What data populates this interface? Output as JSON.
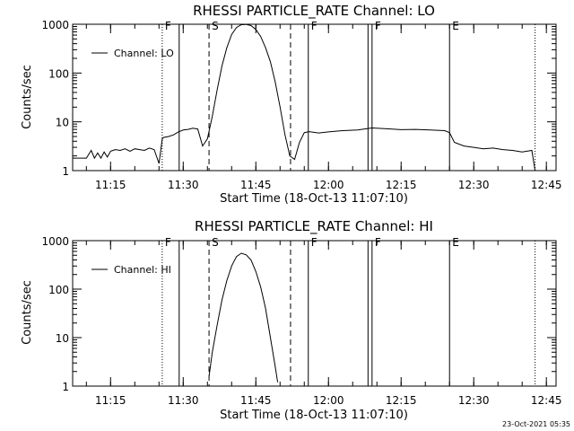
{
  "timestamp": "23-Oct-2021 05:35",
  "chart_data": [
    {
      "type": "line",
      "title": "RHESSI PARTICLE_RATE Channel: LO",
      "xlabel": "Start Time (18-Oct-13 11:07:10)",
      "ylabel": "Counts/sec",
      "legend": "Channel: LO",
      "legend_position": "top-left",
      "y_scale": "log",
      "ylim": [
        1,
        1000
      ],
      "yticks": [
        "1",
        "10",
        "100",
        "1000"
      ],
      "xlim": [
        "11:07:10",
        "12:47:00"
      ],
      "xticks": [
        "11:15",
        "11:30",
        "11:45",
        "12:00",
        "12:15",
        "12:30",
        "12:45"
      ],
      "markers": [
        {
          "time": "11:25:40",
          "style": "dotted",
          "label": "F"
        },
        {
          "time": "11:29:10",
          "style": "solid",
          "label": ""
        },
        {
          "time": "11:35:20",
          "style": "dashed",
          "label": "S"
        },
        {
          "time": "11:52:10",
          "style": "dashed",
          "label": ""
        },
        {
          "time": "11:55:50",
          "style": "solid",
          "label": "F"
        },
        {
          "time": "12:08:10",
          "style": "solid",
          "label": ""
        },
        {
          "time": "12:09:00",
          "style": "solid",
          "label": "F"
        },
        {
          "time": "12:25:00",
          "style": "solid",
          "label": "E"
        },
        {
          "time": "12:42:40",
          "style": "dotted",
          "label": ""
        }
      ],
      "series": [
        {
          "name": "Channel: LO",
          "x": [
            "11:07:10",
            "11:10:00",
            "11:11:00",
            "11:11:40",
            "11:12:20",
            "11:13:00",
            "11:13:40",
            "11:14:20",
            "11:15:00",
            "11:16:00",
            "11:17:00",
            "11:18:00",
            "11:19:00",
            "11:20:00",
            "11:21:00",
            "11:22:00",
            "11:23:00",
            "11:24:00",
            "11:25:00",
            "11:25:40",
            "11:26:00",
            "11:27:00",
            "11:28:00",
            "11:29:00",
            "11:30:00",
            "11:31:00",
            "11:32:00",
            "11:33:00",
            "11:34:00",
            "11:35:00",
            "11:36:00",
            "11:37:00",
            "11:38:00",
            "11:39:00",
            "11:40:00",
            "11:41:00",
            "11:42:00",
            "11:43:00",
            "11:44:00",
            "11:45:00",
            "11:46:00",
            "11:47:00",
            "11:48:00",
            "11:49:00",
            "11:50:00",
            "11:51:00",
            "11:52:00",
            "11:53:00",
            "11:54:00",
            "11:55:00",
            "11:56:00",
            "11:58:00",
            "12:00:00",
            "12:03:00",
            "12:06:00",
            "12:09:00",
            "12:12:00",
            "12:15:00",
            "12:18:00",
            "12:21:00",
            "12:24:00",
            "12:25:00",
            "12:26:00",
            "12:28:00",
            "12:30:00",
            "12:32:00",
            "12:34:00",
            "12:36:00",
            "12:38:00",
            "12:40:00",
            "12:41:00",
            "12:42:00",
            "12:42:40"
          ],
          "values": [
            1.8,
            1.8,
            2.6,
            1.8,
            2.3,
            1.8,
            2.4,
            1.9,
            2.5,
            2.7,
            2.6,
            2.8,
            2.5,
            2.8,
            2.7,
            2.6,
            2.9,
            2.7,
            1.4,
            4.5,
            4.8,
            5.0,
            5.4,
            6.2,
            6.8,
            7.0,
            7.4,
            7.1,
            3.2,
            4.5,
            13,
            45,
            140,
            330,
            620,
            860,
            980,
            990,
            940,
            780,
            560,
            330,
            170,
            65,
            20,
            5.5,
            2.0,
            1.7,
            3.8,
            6.0,
            6.3,
            5.9,
            6.2,
            6.6,
            6.8,
            7.5,
            7.2,
            6.9,
            7.0,
            6.8,
            6.6,
            6.0,
            3.8,
            3.2,
            3.0,
            2.8,
            2.9,
            2.7,
            2.6,
            2.4,
            2.5,
            2.6,
            1.0
          ]
        }
      ]
    },
    {
      "type": "line",
      "title": "RHESSI PARTICLE_RATE Channel: HI",
      "xlabel": "Start Time (18-Oct-13 11:07:10)",
      "ylabel": "Counts/sec",
      "legend": "Channel: HI",
      "legend_position": "top-left",
      "y_scale": "log",
      "ylim": [
        1,
        1000
      ],
      "yticks": [
        "1",
        "10",
        "100",
        "1000"
      ],
      "xlim": [
        "11:07:10",
        "12:47:00"
      ],
      "xticks": [
        "11:15",
        "11:30",
        "11:45",
        "12:00",
        "12:15",
        "12:30",
        "12:45"
      ],
      "markers": [
        {
          "time": "11:25:40",
          "style": "dotted",
          "label": "F"
        },
        {
          "time": "11:29:10",
          "style": "solid",
          "label": ""
        },
        {
          "time": "11:35:20",
          "style": "dashed",
          "label": "S"
        },
        {
          "time": "11:52:10",
          "style": "dashed",
          "label": ""
        },
        {
          "time": "11:55:50",
          "style": "solid",
          "label": "F"
        },
        {
          "time": "12:08:10",
          "style": "solid",
          "label": ""
        },
        {
          "time": "12:09:00",
          "style": "solid",
          "label": "F"
        },
        {
          "time": "12:25:00",
          "style": "solid",
          "label": "E"
        },
        {
          "time": "12:42:40",
          "style": "dotted",
          "label": ""
        }
      ],
      "series": [
        {
          "name": "Channel: HI",
          "x": [
            "11:35:20",
            "11:36:00",
            "11:37:00",
            "11:38:00",
            "11:39:00",
            "11:40:00",
            "11:41:00",
            "11:42:00",
            "11:43:00",
            "11:44:00",
            "11:45:00",
            "11:46:00",
            "11:47:00",
            "11:48:00",
            "11:49:00",
            "11:49:30"
          ],
          "values": [
            1.6,
            5,
            18,
            60,
            150,
            300,
            470,
            550,
            510,
            400,
            230,
            110,
            40,
            10,
            2.5,
            1.2
          ]
        }
      ]
    }
  ]
}
